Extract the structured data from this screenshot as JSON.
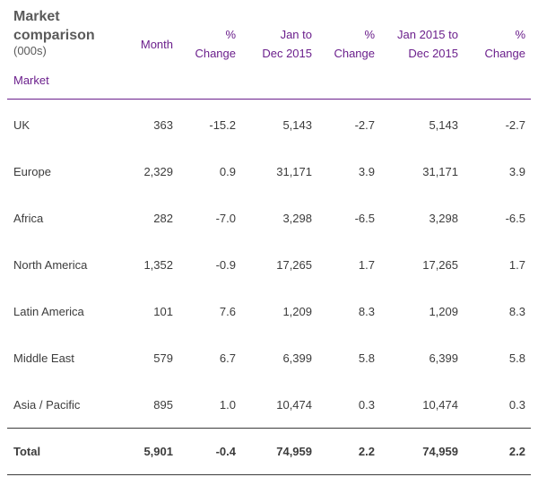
{
  "table": {
    "title_line1": "Market",
    "title_line2": "comparison",
    "title_units": "(000s)",
    "market_label": "Market",
    "headers": {
      "month": "Month",
      "pct1_line1": "%",
      "pct1_line2": "Change",
      "jan_dec_line1": "Jan to",
      "jan_dec_line2": "Dec 2015",
      "pct2_line1": "%",
      "pct2_line2": "Change",
      "jan2015_line1": "Jan 2015 to",
      "jan2015_line2": "Dec 2015",
      "pct3_line1": "%",
      "pct3_line2": "Change"
    },
    "rows": [
      {
        "market": "UK",
        "month": "363",
        "pct1": "-15.2",
        "jan_dec": "5,143",
        "pct2": "-2.7",
        "jan2015": "5,143",
        "pct3": "-2.7"
      },
      {
        "market": "Europe",
        "month": "2,329",
        "pct1": "0.9",
        "jan_dec": "31,171",
        "pct2": "3.9",
        "jan2015": "31,171",
        "pct3": "3.9"
      },
      {
        "market": "Africa",
        "month": "282",
        "pct1": "-7.0",
        "jan_dec": "3,298",
        "pct2": "-6.5",
        "jan2015": "3,298",
        "pct3": "-6.5"
      },
      {
        "market": "North America",
        "month": "1,352",
        "pct1": "-0.9",
        "jan_dec": "17,265",
        "pct2": "1.7",
        "jan2015": "17,265",
        "pct3": "1.7"
      },
      {
        "market": "Latin America",
        "month": "101",
        "pct1": "7.6",
        "jan_dec": "1,209",
        "pct2": "8.3",
        "jan2015": "1,209",
        "pct3": "8.3"
      },
      {
        "market": "Middle East",
        "month": "579",
        "pct1": "6.7",
        "jan_dec": "6,399",
        "pct2": "5.8",
        "jan2015": "6,399",
        "pct3": "5.8"
      },
      {
        "market": "Asia / Pacific",
        "month": "895",
        "pct1": "1.0",
        "jan_dec": "10,474",
        "pct2": "0.3",
        "jan2015": "10,474",
        "pct3": "0.3"
      }
    ],
    "total": {
      "market": "Total",
      "month": "5,901",
      "pct1": "-0.4",
      "jan_dec": "74,959",
      "pct2": "2.2",
      "jan2015": "74,959",
      "pct3": "2.2"
    },
    "colors": {
      "header_accent": "#6b1f8c",
      "text": "#3c3c3c",
      "title": "#5a5a5a"
    }
  }
}
